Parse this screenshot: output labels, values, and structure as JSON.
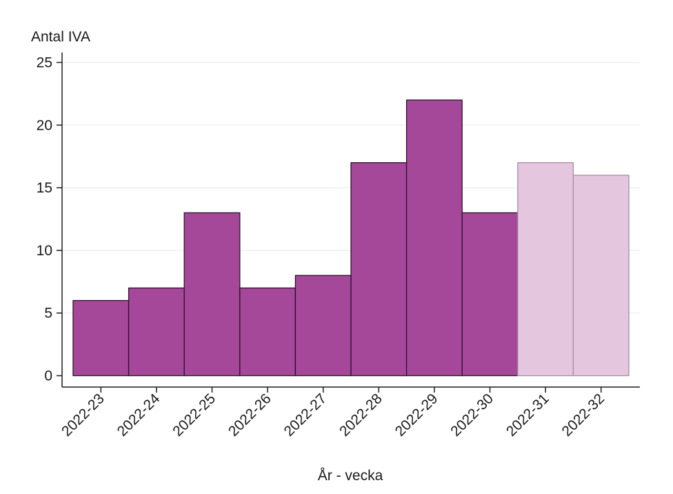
{
  "chart_data": {
    "type": "bar",
    "ylabel": "Antal IVA",
    "xlabel": "År - vecka",
    "ylim": [
      0,
      25
    ],
    "yticks": [
      0,
      5,
      10,
      15,
      20,
      25
    ],
    "grid": true,
    "categories": [
      "2022-23",
      "2022-24",
      "2022-25",
      "2022-26",
      "2022-27",
      "2022-28",
      "2022-29",
      "2022-30",
      "2022-31",
      "2022-32"
    ],
    "values": [
      6,
      7,
      13,
      7,
      8,
      17,
      22,
      13,
      17,
      16
    ],
    "preliminary": [
      false,
      false,
      false,
      false,
      false,
      false,
      false,
      false,
      true,
      true
    ],
    "colors": {
      "bar": "#a5489a",
      "bar_stroke": "#2a1028",
      "bar_preliminary": "#e5c6df",
      "bar_preliminary_stroke": "#a98aa3"
    }
  }
}
